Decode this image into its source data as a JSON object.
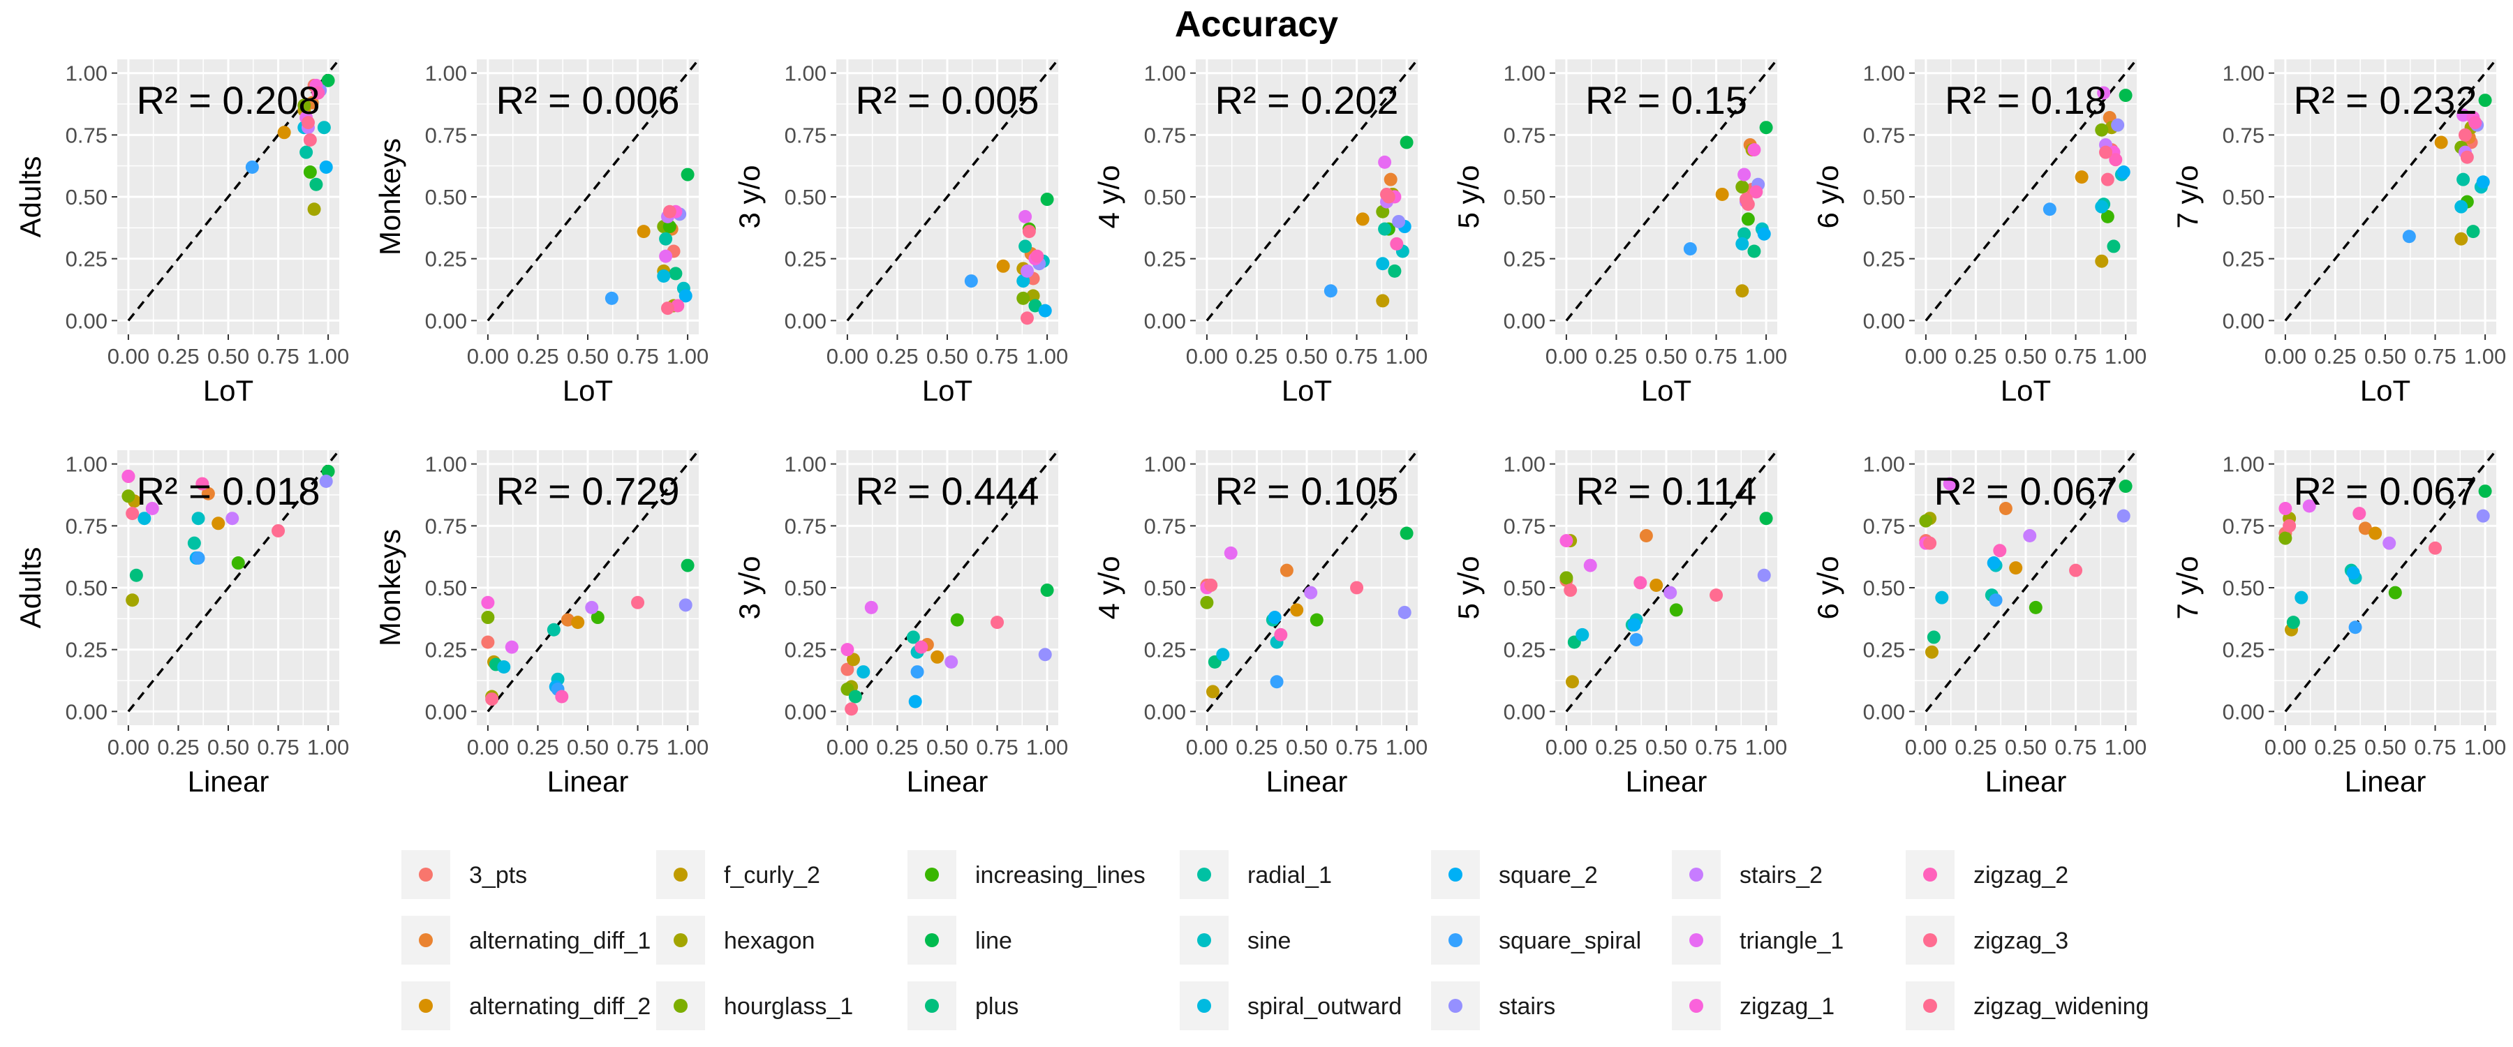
{
  "title": "Accuracy",
  "chart_data": {
    "type": "scatter",
    "title": "Accuracy",
    "xlim": [
      0,
      1
    ],
    "ylim": [
      0,
      1
    ],
    "x_ticks": [
      "0.00",
      "0.25",
      "0.50",
      "0.75",
      "1.00"
    ],
    "y_ticks": [
      "0.00",
      "0.25",
      "0.50",
      "0.75",
      "1.00"
    ],
    "grid": true,
    "identity_line": true,
    "legend_position": "bottom",
    "series": [
      {
        "name": "3_pts",
        "color": "#F8766D"
      },
      {
        "name": "alternating_diff_1",
        "color": "#EA8331"
      },
      {
        "name": "alternating_diff_2",
        "color": "#D89000"
      },
      {
        "name": "f_curly_2",
        "color": "#C09B00"
      },
      {
        "name": "hexagon",
        "color": "#A3A500"
      },
      {
        "name": "hourglass_1",
        "color": "#7CAE00"
      },
      {
        "name": "increasing_lines",
        "color": "#39B600"
      },
      {
        "name": "line",
        "color": "#00BB4E"
      },
      {
        "name": "plus",
        "color": "#00BF7D"
      },
      {
        "name": "radial_1",
        "color": "#00C1A3"
      },
      {
        "name": "sine",
        "color": "#00BFC4"
      },
      {
        "name": "spiral_outward",
        "color": "#00BAE0"
      },
      {
        "name": "square_2",
        "color": "#00B0F6"
      },
      {
        "name": "square_spiral",
        "color": "#35A2FF"
      },
      {
        "name": "stairs",
        "color": "#9590FF"
      },
      {
        "name": "stairs_2",
        "color": "#C77CFF"
      },
      {
        "name": "triangle_1",
        "color": "#E76BF3"
      },
      {
        "name": "zigzag_1",
        "color": "#FA62DB"
      },
      {
        "name": "zigzag_2",
        "color": "#FF62BC"
      },
      {
        "name": "zigzag_3",
        "color": "#FF6C91"
      },
      {
        "name": "zigzag_widening",
        "color": "#FF6C91"
      }
    ],
    "lot_x": [
      0.93,
      0.92,
      0.78,
      0.88,
      0.93,
      0.88,
      0.91,
      1.0,
      0.94,
      0.89,
      0.98,
      0.88,
      0.99,
      0.62,
      0.96,
      0.9,
      0.89,
      0.94,
      0.95,
      0.91,
      0.9
    ],
    "linear_x": [
      0.0,
      0.4,
      0.45,
      0.03,
      0.02,
      0.0,
      0.55,
      1.0,
      0.04,
      0.33,
      0.35,
      0.08,
      0.34,
      0.35,
      0.99,
      0.52,
      0.12,
      0.0,
      0.37,
      0.75,
      0.02
    ],
    "panels": [
      {
        "row": 0,
        "ylabel": "Adults",
        "xlabel": "LoT",
        "r2": "R² = 0.208",
        "y": [
          0.95,
          0.88,
          0.76,
          0.85,
          0.45,
          0.87,
          0.6,
          0.97,
          0.55,
          0.68,
          0.78,
          0.78,
          0.62,
          0.62,
          0.93,
          0.78,
          0.82,
          0.95,
          0.92,
          0.73,
          0.8
        ]
      },
      {
        "row": 0,
        "ylabel": "Monkeys",
        "xlabel": "LoT",
        "r2": "R² = 0.006",
        "y": [
          0.28,
          0.37,
          0.36,
          0.2,
          0.06,
          0.38,
          0.38,
          0.59,
          0.19,
          0.33,
          0.13,
          0.18,
          0.1,
          0.09,
          0.43,
          0.42,
          0.26,
          0.44,
          0.06,
          0.44,
          0.05
        ]
      },
      {
        "row": 0,
        "ylabel": "3 y/o",
        "xlabel": "LoT",
        "r2": "R² = 0.005",
        "y": [
          0.17,
          0.27,
          0.22,
          0.21,
          0.1,
          0.09,
          0.37,
          0.49,
          0.06,
          0.3,
          0.24,
          0.16,
          0.04,
          0.16,
          0.23,
          0.2,
          0.42,
          0.25,
          0.26,
          0.36,
          0.01
        ]
      },
      {
        "row": 0,
        "ylabel": "4 y/o",
        "xlabel": "LoT",
        "r2": "R² = 0.202",
        "y": [
          0.51,
          0.57,
          0.41,
          0.08,
          0.51,
          0.44,
          0.37,
          0.72,
          0.2,
          0.37,
          0.28,
          0.23,
          0.38,
          0.12,
          0.4,
          0.48,
          0.64,
          0.5,
          0.31,
          0.5,
          0.51
        ]
      },
      {
        "row": 0,
        "ylabel": "5 y/o",
        "xlabel": "LoT",
        "r2": "R² = 0.15",
        "y": [
          0.53,
          0.71,
          0.51,
          0.12,
          0.69,
          0.54,
          0.41,
          0.78,
          0.28,
          0.35,
          0.37,
          0.31,
          0.35,
          0.29,
          0.55,
          0.48,
          0.59,
          0.69,
          0.52,
          0.47,
          0.49
        ]
      },
      {
        "row": 0,
        "ylabel": "6 y/o",
        "xlabel": "LoT",
        "r2": "R² = 0.18",
        "y": [
          0.69,
          0.82,
          0.58,
          0.24,
          0.78,
          0.77,
          0.42,
          0.91,
          0.3,
          0.47,
          0.59,
          0.46,
          0.6,
          0.45,
          0.79,
          0.71,
          0.92,
          0.68,
          0.65,
          0.57,
          0.68
        ]
      },
      {
        "row": 0,
        "ylabel": "7 y/o",
        "xlabel": "LoT",
        "r2": "R² = 0.232",
        "y": [
          0.72,
          0.74,
          0.72,
          0.33,
          0.78,
          0.7,
          0.48,
          0.89,
          0.36,
          0.57,
          0.54,
          0.46,
          0.56,
          0.34,
          0.79,
          0.68,
          0.83,
          0.82,
          0.8,
          0.66,
          0.75
        ]
      },
      {
        "row": 1,
        "ylabel": "Adults",
        "xlabel": "Linear",
        "r2": "R² = 0.018",
        "y": [
          0.95,
          0.88,
          0.76,
          0.85,
          0.45,
          0.87,
          0.6,
          0.97,
          0.55,
          0.68,
          0.78,
          0.78,
          0.62,
          0.62,
          0.93,
          0.78,
          0.82,
          0.95,
          0.92,
          0.73,
          0.8
        ]
      },
      {
        "row": 1,
        "ylabel": "Monkeys",
        "xlabel": "Linear",
        "r2": "R² = 0.729",
        "y": [
          0.28,
          0.37,
          0.36,
          0.2,
          0.06,
          0.38,
          0.38,
          0.59,
          0.19,
          0.33,
          0.13,
          0.18,
          0.1,
          0.09,
          0.43,
          0.42,
          0.26,
          0.44,
          0.06,
          0.44,
          0.05
        ]
      },
      {
        "row": 1,
        "ylabel": "3 y/o",
        "xlabel": "Linear",
        "r2": "R² = 0.444",
        "y": [
          0.17,
          0.27,
          0.22,
          0.21,
          0.1,
          0.09,
          0.37,
          0.49,
          0.06,
          0.3,
          0.24,
          0.16,
          0.04,
          0.16,
          0.23,
          0.2,
          0.42,
          0.25,
          0.26,
          0.36,
          0.01
        ]
      },
      {
        "row": 1,
        "ylabel": "4 y/o",
        "xlabel": "Linear",
        "r2": "R² = 0.105",
        "y": [
          0.51,
          0.57,
          0.41,
          0.08,
          0.51,
          0.44,
          0.37,
          0.72,
          0.2,
          0.37,
          0.28,
          0.23,
          0.38,
          0.12,
          0.4,
          0.48,
          0.64,
          0.5,
          0.31,
          0.5,
          0.51
        ]
      },
      {
        "row": 1,
        "ylabel": "5 y/o",
        "xlabel": "Linear",
        "r2": "R² = 0.114",
        "y": [
          0.53,
          0.71,
          0.51,
          0.12,
          0.69,
          0.54,
          0.41,
          0.78,
          0.28,
          0.35,
          0.37,
          0.31,
          0.35,
          0.29,
          0.55,
          0.48,
          0.59,
          0.69,
          0.52,
          0.47,
          0.49
        ]
      },
      {
        "row": 1,
        "ylabel": "6 y/o",
        "xlabel": "Linear",
        "r2": "R² = 0.067",
        "y": [
          0.69,
          0.82,
          0.58,
          0.24,
          0.78,
          0.77,
          0.42,
          0.91,
          0.3,
          0.47,
          0.59,
          0.46,
          0.6,
          0.45,
          0.79,
          0.71,
          0.92,
          0.68,
          0.65,
          0.57,
          0.68
        ]
      },
      {
        "row": 1,
        "ylabel": "7 y/o",
        "xlabel": "Linear",
        "r2": "R² = 0.067",
        "y": [
          0.72,
          0.74,
          0.72,
          0.33,
          0.78,
          0.7,
          0.48,
          0.89,
          0.36,
          0.57,
          0.54,
          0.46,
          0.56,
          0.34,
          0.79,
          0.68,
          0.83,
          0.82,
          0.8,
          0.66,
          0.75
        ]
      }
    ]
  }
}
